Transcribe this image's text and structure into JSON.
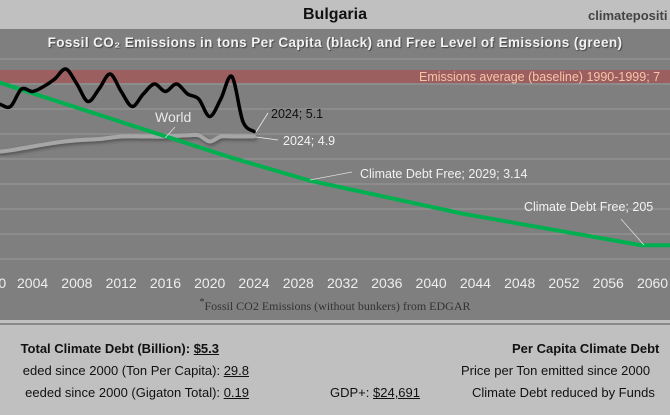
{
  "header": {
    "title": "Bulgaria",
    "brand": "climatepositi"
  },
  "chart_data": {
    "type": "line",
    "title": "Fossil CO₂ Emissions in tons Per Capita (black) and Free Level of Emissions (green)",
    "footnote": "Fossil CO2 Emissions (without bunkers) from EDGAR",
    "footnote_mark": "*",
    "x_ticks": [
      "0",
      "2004",
      "2008",
      "2012",
      "2016",
      "2020",
      "2024",
      "2028",
      "2032",
      "2036",
      "2040",
      "2044",
      "2048",
      "2052",
      "2056",
      "2060"
    ],
    "xlim": [
      2000,
      2062
    ],
    "ylim": [
      0,
      8
    ],
    "grid": true,
    "baseline": {
      "label": "Emissions average (baseline) 1990-1999; 7",
      "value": 7.3
    },
    "series": [
      {
        "name": "Bulgaria",
        "color": "#000000",
        "x": [
          2000,
          2001,
          2002,
          2003,
          2004,
          2005,
          2006,
          2007,
          2008,
          2009,
          2010,
          2011,
          2012,
          2013,
          2014,
          2015,
          2016,
          2017,
          2018,
          2019,
          2020,
          2021,
          2022,
          2023,
          2024
        ],
        "y": [
          6.4,
          6.2,
          6.1,
          6.8,
          6.7,
          6.9,
          7.2,
          7.6,
          7.0,
          6.3,
          6.8,
          7.4,
          6.7,
          6.1,
          6.6,
          7.0,
          6.7,
          7.0,
          6.6,
          6.4,
          5.7,
          6.4,
          7.3,
          5.5,
          5.1
        ]
      },
      {
        "name": "World",
        "color": "#a6a6a6",
        "x": [
          2000,
          2002,
          2004,
          2006,
          2008,
          2010,
          2012,
          2014,
          2016,
          2018,
          2019,
          2020,
          2021,
          2022,
          2024
        ],
        "y": [
          4.25,
          4.35,
          4.5,
          4.65,
          4.75,
          4.8,
          4.9,
          4.9,
          4.9,
          4.95,
          4.95,
          4.7,
          4.9,
          4.9,
          4.9
        ]
      },
      {
        "name": "Free Level",
        "color": "#00b050",
        "x": [
          2000,
          2022,
          2029,
          2043,
          2059,
          2062
        ],
        "y": [
          7.2,
          4.05,
          3.14,
          1.8,
          0.55,
          0.55
        ]
      }
    ],
    "annotations": {
      "bg_last": "2024; 5.1",
      "world_last": "2024; 4.9",
      "world_label": "World",
      "debt_free_1": "Climate Debt Free; 2029; 3.14",
      "debt_free_2": "Climate Debt Free; 205"
    }
  },
  "summary": {
    "total_debt_label": "Total Climate Debt (Billion):",
    "total_debt_value": "$5.3",
    "ton_pc_label": "eded since 2000 (Ton Per Capita):",
    "ton_pc_value": "29.8",
    "gigaton_label": "eeded since 2000 (Gigaton Total):",
    "gigaton_value": "0.19",
    "gdp_label": "GDP+:",
    "gdp_value": "$24,691",
    "per_capita_label": "Per Capita Climate Debt",
    "price_label": "Price per Ton emitted since 2000",
    "reduced_label": "Climate Debt reduced by Funds"
  }
}
